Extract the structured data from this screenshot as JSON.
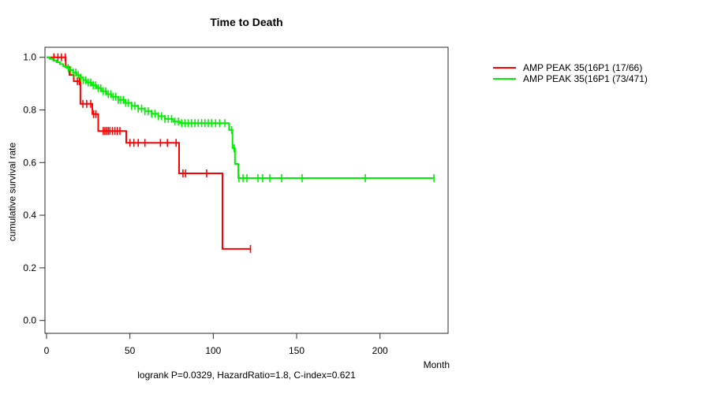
{
  "page": {
    "background": "#ffffff"
  },
  "chart_data": {
    "type": "line",
    "chart_kind": "kaplan-meier-step",
    "title": "Time to Death",
    "annotation": "logrank P=0.0329, HazardRatio=1.8, C-index=0.621",
    "grid": false,
    "legend_position": "right-outside",
    "axis_color": "#2a2a2a",
    "x_axis": {
      "label": "Month",
      "ticks": [
        0,
        50,
        100,
        150,
        200
      ],
      "range": [
        0,
        240
      ]
    },
    "y_axis": {
      "label": "cumulative survival rate",
      "tick_values": [
        0.0,
        0.2,
        0.4,
        0.6,
        0.8,
        1.0
      ],
      "tick_labels": [
        "0.0",
        "0.2",
        "0.4",
        "0.6",
        "0.8",
        "1.0"
      ],
      "range": [
        0.0,
        1.0
      ]
    },
    "series": [
      {
        "name": "AMP PEAK 35(16P1 (17/66)",
        "color": "#ff0000",
        "steps": [
          [
            0,
            1.0
          ],
          [
            11.5,
            0.963
          ],
          [
            13.7,
            0.933
          ],
          [
            16.3,
            0.909
          ],
          [
            20.3,
            0.823
          ],
          [
            27.5,
            0.784
          ],
          [
            31,
            0.72
          ],
          [
            47.8,
            0.675
          ],
          [
            79.5,
            0.559
          ],
          [
            105.5,
            0.272
          ]
        ],
        "end_month": 122.5,
        "censor_months": [
          4.4,
          6.8,
          8.9,
          11.2,
          18.5,
          19.8,
          21.8,
          24.1,
          26.5,
          28.2,
          29.6,
          34,
          35,
          36,
          37,
          38,
          39.5,
          41,
          42.5,
          44,
          50,
          52.4,
          55,
          59,
          68.3,
          72.5,
          77.7,
          81.8,
          83.4,
          96,
          122.3
        ]
      },
      {
        "name": "AMP PEAK 35(16P1 (73/471)",
        "color": "#00ee00",
        "steps": [
          [
            0,
            1.0
          ],
          [
            2,
            0.994
          ],
          [
            4,
            0.987
          ],
          [
            6,
            0.981
          ],
          [
            8,
            0.974
          ],
          [
            10,
            0.966
          ],
          [
            12,
            0.959
          ],
          [
            14,
            0.951
          ],
          [
            16,
            0.942
          ],
          [
            18,
            0.932
          ],
          [
            20,
            0.923
          ],
          [
            22,
            0.913
          ],
          [
            24,
            0.904
          ],
          [
            27,
            0.894
          ],
          [
            30,
            0.883
          ],
          [
            33,
            0.871
          ],
          [
            36,
            0.86
          ],
          [
            39,
            0.85
          ],
          [
            43,
            0.838
          ],
          [
            47,
            0.827
          ],
          [
            51,
            0.816
          ],
          [
            55,
            0.805
          ],
          [
            59,
            0.795
          ],
          [
            63,
            0.786
          ],
          [
            67,
            0.776
          ],
          [
            71,
            0.766
          ],
          [
            76,
            0.756
          ],
          [
            80,
            0.75
          ],
          [
            109.5,
            0.724
          ],
          [
            111.5,
            0.655
          ],
          [
            113,
            0.595
          ],
          [
            115,
            0.541
          ]
        ],
        "end_month": 232.3,
        "censor_months": [
          13,
          14.5,
          16,
          17.5,
          19,
          20.5,
          22,
          23.5,
          25,
          26.5,
          28,
          29.5,
          31,
          32.5,
          34,
          35.5,
          37,
          38.5,
          40,
          41.5,
          43,
          44.5,
          46,
          47.5,
          49,
          51,
          53,
          55,
          57,
          59,
          61,
          63,
          65,
          67,
          69,
          71,
          73,
          75,
          77,
          79,
          81,
          83,
          85,
          87,
          89,
          91,
          93,
          95,
          97,
          99,
          101.4,
          103.8,
          107,
          111,
          112.5,
          115.4,
          117.8,
          120.2,
          126.8,
          129.6,
          133.9,
          141,
          153.3,
          191.2,
          232.3
        ]
      }
    ]
  }
}
